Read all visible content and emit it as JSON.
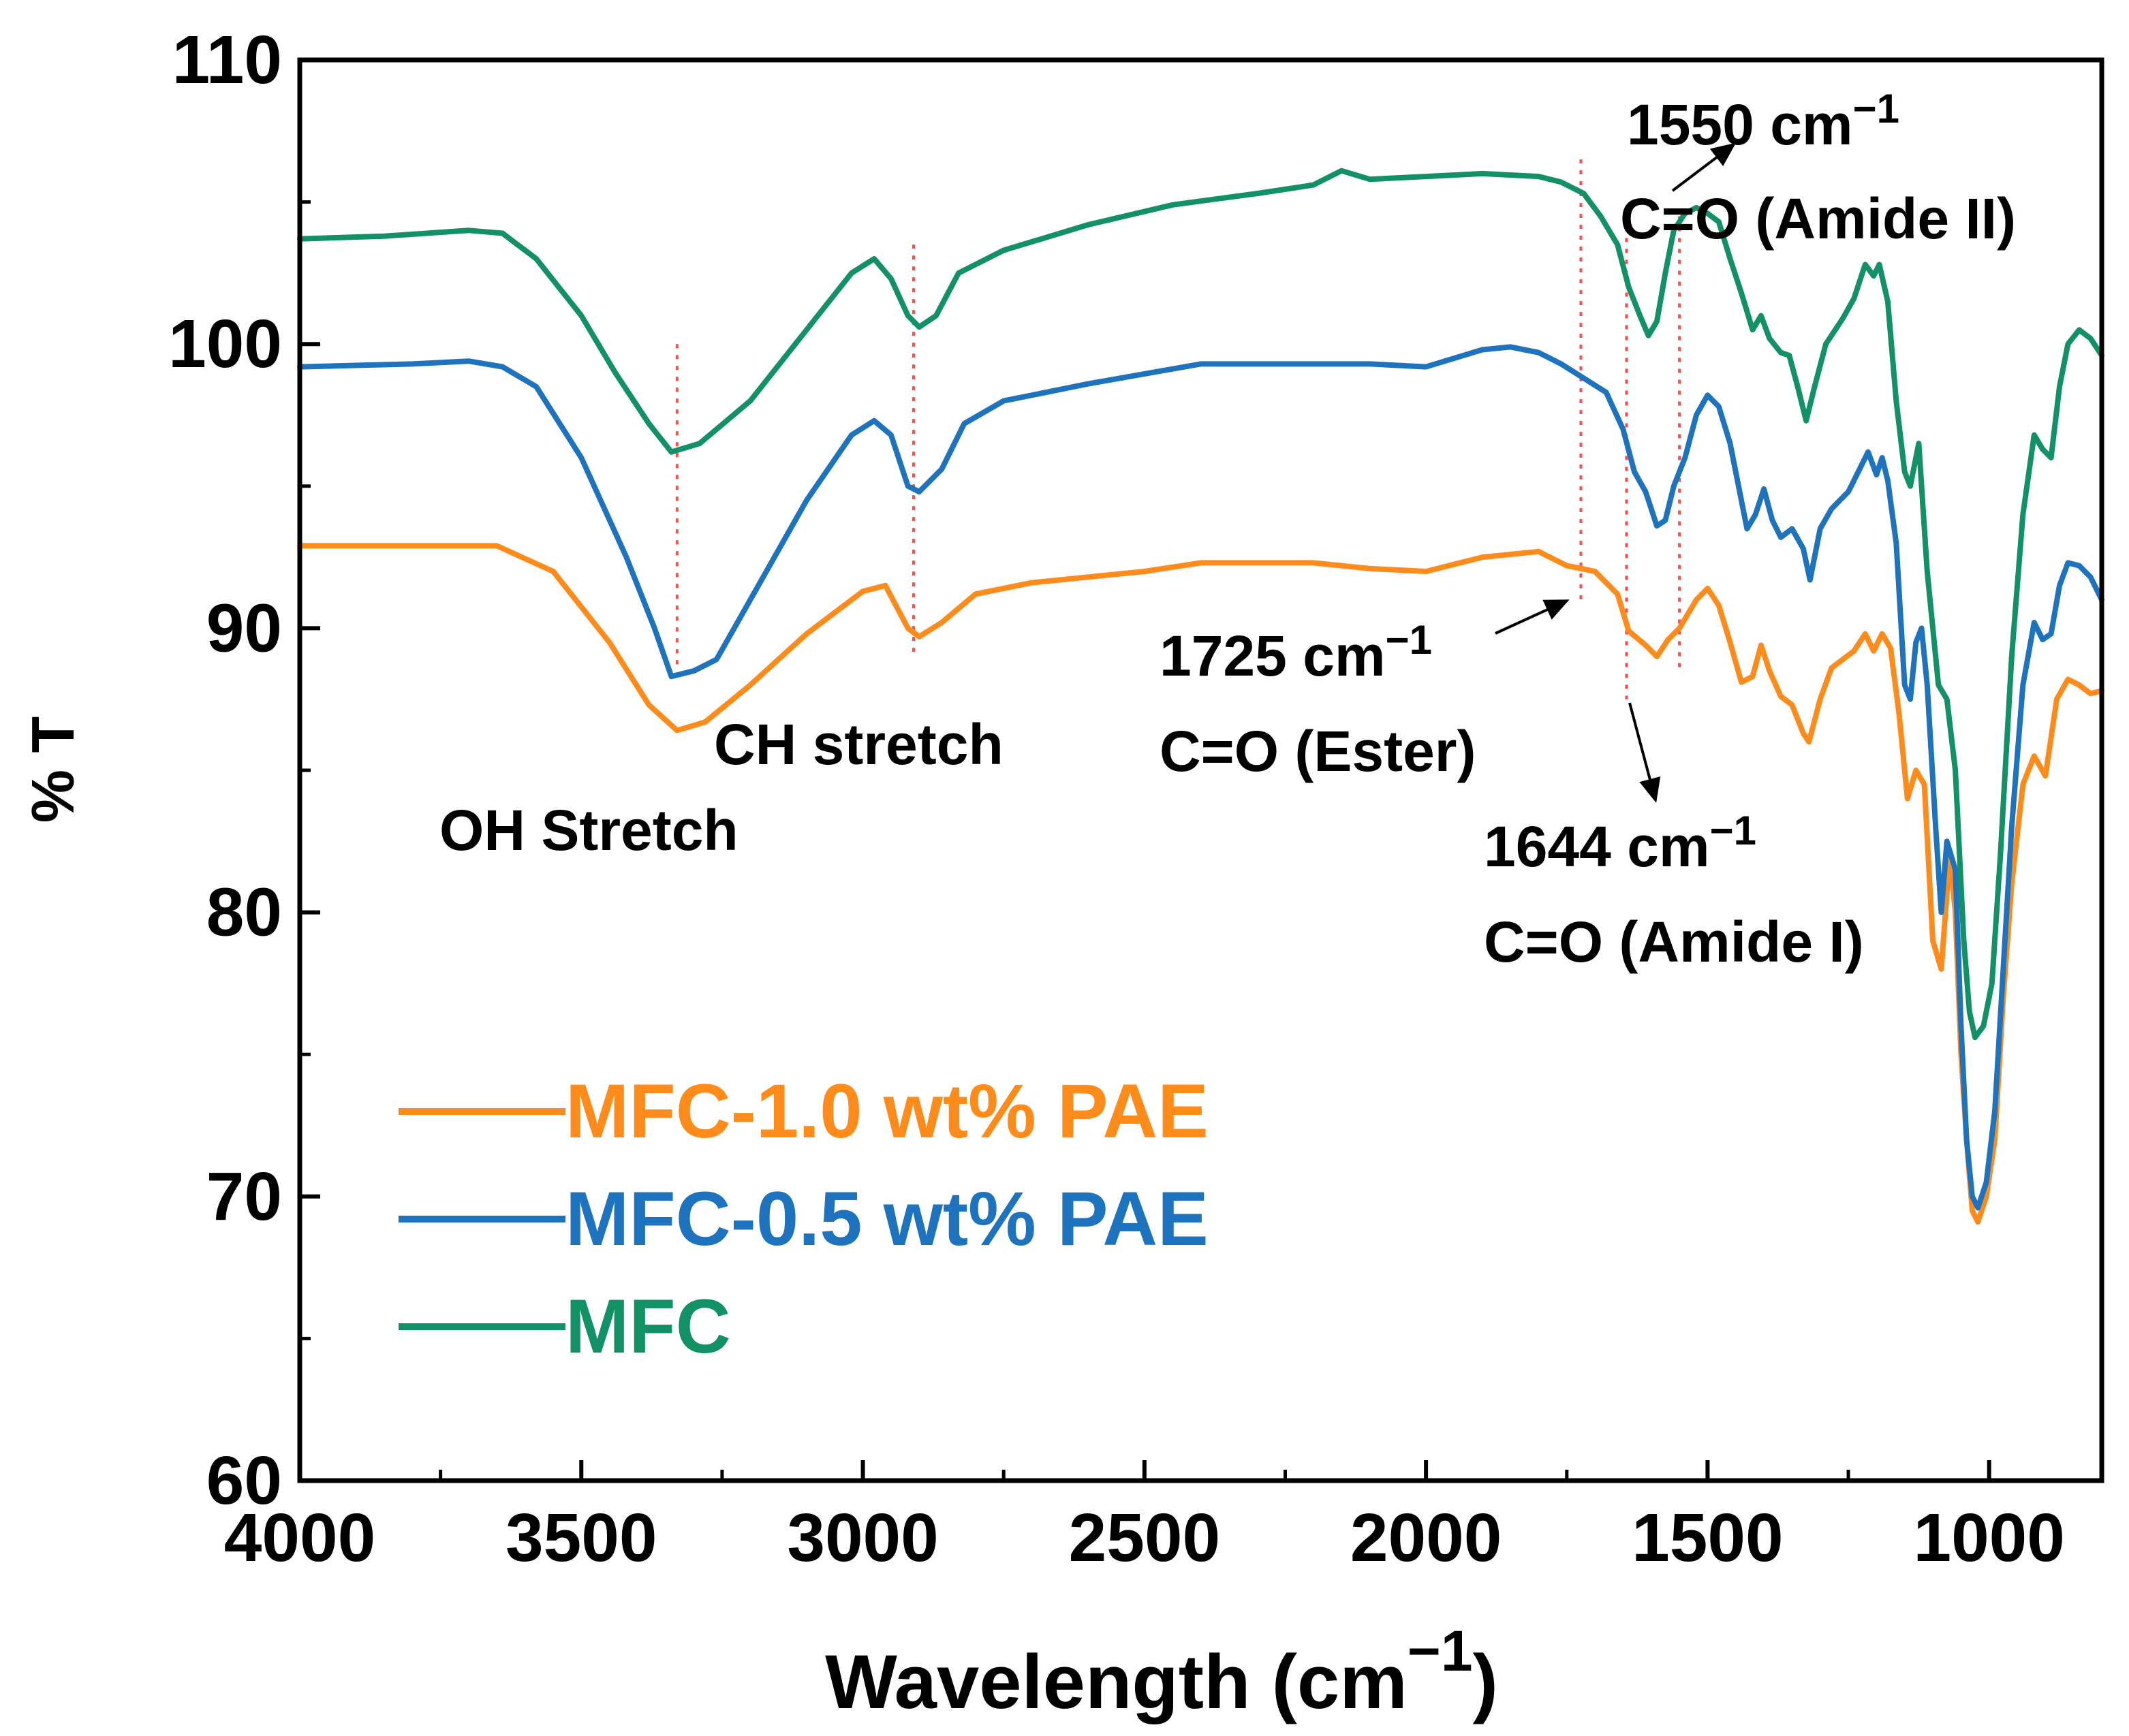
{
  "chart_data": {
    "type": "line",
    "title": "",
    "xlabel": "Wavelength (cm",
    "xlabel_superscript": "−1",
    "xlabel_close": ")",
    "ylabel": "% T",
    "xlim": [
      4000,
      800
    ],
    "ylim": [
      60,
      110
    ],
    "x_ticks": [
      4000,
      3500,
      3000,
      2500,
      2000,
      1500,
      1000
    ],
    "y_ticks": [
      60,
      70,
      80,
      90,
      100,
      110
    ],
    "grid": false,
    "legend_position": "lower-left",
    "series": [
      {
        "name": "MFC-1.0 wt% PAE",
        "color": "#FF8C1A",
        "points": [
          [
            4000,
            92.9
          ],
          [
            3800,
            92.9
          ],
          [
            3650,
            92.9
          ],
          [
            3550,
            92.0
          ],
          [
            3450,
            89.5
          ],
          [
            3380,
            87.3
          ],
          [
            3330,
            86.4
          ],
          [
            3280,
            86.7
          ],
          [
            3200,
            88.0
          ],
          [
            3100,
            89.8
          ],
          [
            3000,
            91.3
          ],
          [
            2960,
            91.5
          ],
          [
            2920,
            90.0
          ],
          [
            2900,
            89.7
          ],
          [
            2860,
            90.2
          ],
          [
            2800,
            91.2
          ],
          [
            2700,
            91.6
          ],
          [
            2500,
            92.0
          ],
          [
            2400,
            92.3
          ],
          [
            2200,
            92.3
          ],
          [
            2100,
            92.1
          ],
          [
            2000,
            92.0
          ],
          [
            1900,
            92.5
          ],
          [
            1800,
            92.7
          ],
          [
            1750,
            92.2
          ],
          [
            1700,
            92.0
          ],
          [
            1660,
            91.2
          ],
          [
            1640,
            89.9
          ],
          [
            1610,
            89.4
          ],
          [
            1590,
            89.0
          ],
          [
            1570,
            89.6
          ],
          [
            1550,
            90.0
          ],
          [
            1520,
            91.0
          ],
          [
            1500,
            91.4
          ],
          [
            1480,
            90.8
          ],
          [
            1460,
            89.5
          ],
          [
            1440,
            88.1
          ],
          [
            1420,
            88.3
          ],
          [
            1405,
            89.4
          ],
          [
            1390,
            88.5
          ],
          [
            1370,
            87.6
          ],
          [
            1350,
            87.3
          ],
          [
            1330,
            86.3
          ],
          [
            1320,
            86.0
          ],
          [
            1300,
            87.5
          ],
          [
            1280,
            88.6
          ],
          [
            1240,
            89.2
          ],
          [
            1220,
            89.8
          ],
          [
            1205,
            89.2
          ],
          [
            1190,
            89.8
          ],
          [
            1175,
            89.3
          ],
          [
            1160,
            87.0
          ],
          [
            1145,
            84.0
          ],
          [
            1130,
            85.0
          ],
          [
            1115,
            84.5
          ],
          [
            1100,
            79.0
          ],
          [
            1085,
            78.0
          ],
          [
            1070,
            82.0
          ],
          [
            1060,
            80.0
          ],
          [
            1050,
            75.0
          ],
          [
            1040,
            72.0
          ],
          [
            1030,
            69.5
          ],
          [
            1020,
            69.1
          ],
          [
            1005,
            70.0
          ],
          [
            990,
            72.0
          ],
          [
            975,
            77.0
          ],
          [
            960,
            81.0
          ],
          [
            940,
            84.5
          ],
          [
            920,
            85.5
          ],
          [
            900,
            84.8
          ],
          [
            880,
            87.5
          ],
          [
            860,
            88.2
          ],
          [
            840,
            88.0
          ],
          [
            820,
            87.7
          ],
          [
            800,
            87.8
          ]
        ]
      },
      {
        "name": "MFC-0.5 wt% PAE",
        "color": "#1E73BE",
        "points": [
          [
            4000,
            99.2
          ],
          [
            3800,
            99.3
          ],
          [
            3700,
            99.4
          ],
          [
            3640,
            99.2
          ],
          [
            3580,
            98.5
          ],
          [
            3500,
            96.0
          ],
          [
            3420,
            92.5
          ],
          [
            3370,
            90.0
          ],
          [
            3340,
            88.3
          ],
          [
            3300,
            88.5
          ],
          [
            3260,
            88.9
          ],
          [
            3200,
            91.0
          ],
          [
            3100,
            94.5
          ],
          [
            3020,
            96.8
          ],
          [
            2980,
            97.3
          ],
          [
            2950,
            96.8
          ],
          [
            2920,
            95.0
          ],
          [
            2900,
            94.8
          ],
          [
            2860,
            95.6
          ],
          [
            2820,
            97.2
          ],
          [
            2750,
            98.0
          ],
          [
            2600,
            98.6
          ],
          [
            2400,
            99.3
          ],
          [
            2200,
            99.3
          ],
          [
            2100,
            99.3
          ],
          [
            2000,
            99.2
          ],
          [
            1900,
            99.8
          ],
          [
            1850,
            99.9
          ],
          [
            1800,
            99.7
          ],
          [
            1760,
            99.3
          ],
          [
            1720,
            98.8
          ],
          [
            1680,
            98.3
          ],
          [
            1650,
            97.0
          ],
          [
            1630,
            95.5
          ],
          [
            1610,
            94.8
          ],
          [
            1590,
            93.6
          ],
          [
            1575,
            93.8
          ],
          [
            1560,
            95.0
          ],
          [
            1540,
            96.0
          ],
          [
            1520,
            97.5
          ],
          [
            1500,
            98.2
          ],
          [
            1480,
            97.8
          ],
          [
            1460,
            96.5
          ],
          [
            1445,
            95.0
          ],
          [
            1430,
            93.5
          ],
          [
            1415,
            94.0
          ],
          [
            1400,
            94.9
          ],
          [
            1385,
            93.8
          ],
          [
            1370,
            93.2
          ],
          [
            1350,
            93.5
          ],
          [
            1330,
            92.8
          ],
          [
            1318,
            91.7
          ],
          [
            1300,
            93.5
          ],
          [
            1280,
            94.2
          ],
          [
            1250,
            94.8
          ],
          [
            1230,
            95.6
          ],
          [
            1215,
            96.2
          ],
          [
            1200,
            95.4
          ],
          [
            1190,
            96.0
          ],
          [
            1180,
            95.2
          ],
          [
            1165,
            93.0
          ],
          [
            1150,
            88.0
          ],
          [
            1140,
            87.5
          ],
          [
            1130,
            89.5
          ],
          [
            1120,
            90.0
          ],
          [
            1110,
            88.0
          ],
          [
            1095,
            83.0
          ],
          [
            1085,
            80.0
          ],
          [
            1075,
            82.5
          ],
          [
            1060,
            81.5
          ],
          [
            1050,
            76.0
          ],
          [
            1040,
            72.0
          ],
          [
            1030,
            70.0
          ],
          [
            1020,
            69.6
          ],
          [
            1005,
            70.5
          ],
          [
            990,
            73.0
          ],
          [
            975,
            78.0
          ],
          [
            960,
            83.0
          ],
          [
            940,
            88.0
          ],
          [
            920,
            90.2
          ],
          [
            905,
            89.6
          ],
          [
            890,
            89.8
          ],
          [
            875,
            91.5
          ],
          [
            860,
            92.3
          ],
          [
            840,
            92.2
          ],
          [
            820,
            91.8
          ],
          [
            800,
            91.0
          ]
        ]
      },
      {
        "name": "MFC",
        "color": "#119164",
        "points": [
          [
            4000,
            103.7
          ],
          [
            3850,
            103.8
          ],
          [
            3700,
            104.0
          ],
          [
            3640,
            103.9
          ],
          [
            3580,
            103.0
          ],
          [
            3500,
            101.0
          ],
          [
            3440,
            99.0
          ],
          [
            3380,
            97.2
          ],
          [
            3340,
            96.2
          ],
          [
            3290,
            96.5
          ],
          [
            3200,
            98.0
          ],
          [
            3100,
            100.5
          ],
          [
            3020,
            102.5
          ],
          [
            2980,
            103.0
          ],
          [
            2950,
            102.3
          ],
          [
            2920,
            101.0
          ],
          [
            2900,
            100.6
          ],
          [
            2870,
            101.0
          ],
          [
            2830,
            102.5
          ],
          [
            2750,
            103.3
          ],
          [
            2600,
            104.2
          ],
          [
            2450,
            104.9
          ],
          [
            2300,
            105.3
          ],
          [
            2200,
            105.6
          ],
          [
            2150,
            106.1
          ],
          [
            2100,
            105.8
          ],
          [
            2000,
            105.9
          ],
          [
            1900,
            106.0
          ],
          [
            1800,
            105.9
          ],
          [
            1760,
            105.7
          ],
          [
            1720,
            105.3
          ],
          [
            1690,
            104.5
          ],
          [
            1660,
            103.5
          ],
          [
            1640,
            102.0
          ],
          [
            1620,
            101.0
          ],
          [
            1605,
            100.3
          ],
          [
            1590,
            100.8
          ],
          [
            1575,
            102.5
          ],
          [
            1560,
            104.0
          ],
          [
            1540,
            104.6
          ],
          [
            1520,
            104.8
          ],
          [
            1500,
            104.6
          ],
          [
            1480,
            104.3
          ],
          [
            1460,
            103.0
          ],
          [
            1440,
            101.8
          ],
          [
            1420,
            100.5
          ],
          [
            1405,
            101.0
          ],
          [
            1390,
            100.2
          ],
          [
            1370,
            99.7
          ],
          [
            1355,
            99.6
          ],
          [
            1340,
            98.5
          ],
          [
            1325,
            97.3
          ],
          [
            1310,
            98.5
          ],
          [
            1290,
            100.0
          ],
          [
            1260,
            100.9
          ],
          [
            1240,
            101.6
          ],
          [
            1220,
            102.8
          ],
          [
            1205,
            102.4
          ],
          [
            1195,
            102.8
          ],
          [
            1180,
            101.5
          ],
          [
            1165,
            98.0
          ],
          [
            1150,
            95.5
          ],
          [
            1140,
            95.0
          ],
          [
            1130,
            96.0
          ],
          [
            1125,
            96.5
          ],
          [
            1110,
            92.0
          ],
          [
            1090,
            88.0
          ],
          [
            1075,
            87.5
          ],
          [
            1060,
            85.0
          ],
          [
            1045,
            79.0
          ],
          [
            1035,
            76.5
          ],
          [
            1025,
            75.6
          ],
          [
            1010,
            76.0
          ],
          [
            995,
            77.5
          ],
          [
            980,
            82.0
          ],
          [
            960,
            89.0
          ],
          [
            940,
            94.0
          ],
          [
            920,
            96.8
          ],
          [
            905,
            96.3
          ],
          [
            890,
            96.0
          ],
          [
            875,
            98.5
          ],
          [
            860,
            100.0
          ],
          [
            840,
            100.5
          ],
          [
            820,
            100.2
          ],
          [
            800,
            99.6
          ]
        ]
      }
    ],
    "guide_lines_x": [
      3330,
      2910,
      1725,
      1644,
      1550
    ],
    "annotations": [
      {
        "id": "oh",
        "text": "OH Stretch"
      },
      {
        "id": "ch",
        "text": "CH stretch"
      },
      {
        "id": "n1725",
        "text": "1725 cm",
        "sup": "−1"
      },
      {
        "id": "e1725",
        "text": "C=O (Ester)"
      },
      {
        "id": "n1644",
        "text": "1644 cm",
        "sup": "−1"
      },
      {
        "id": "a1644",
        "text": "C=O (Amide I)"
      },
      {
        "id": "n1550",
        "text": "1550 cm",
        "sup": "−1"
      },
      {
        "id": "a1550",
        "text": "C=O (Amide II)"
      }
    ]
  }
}
